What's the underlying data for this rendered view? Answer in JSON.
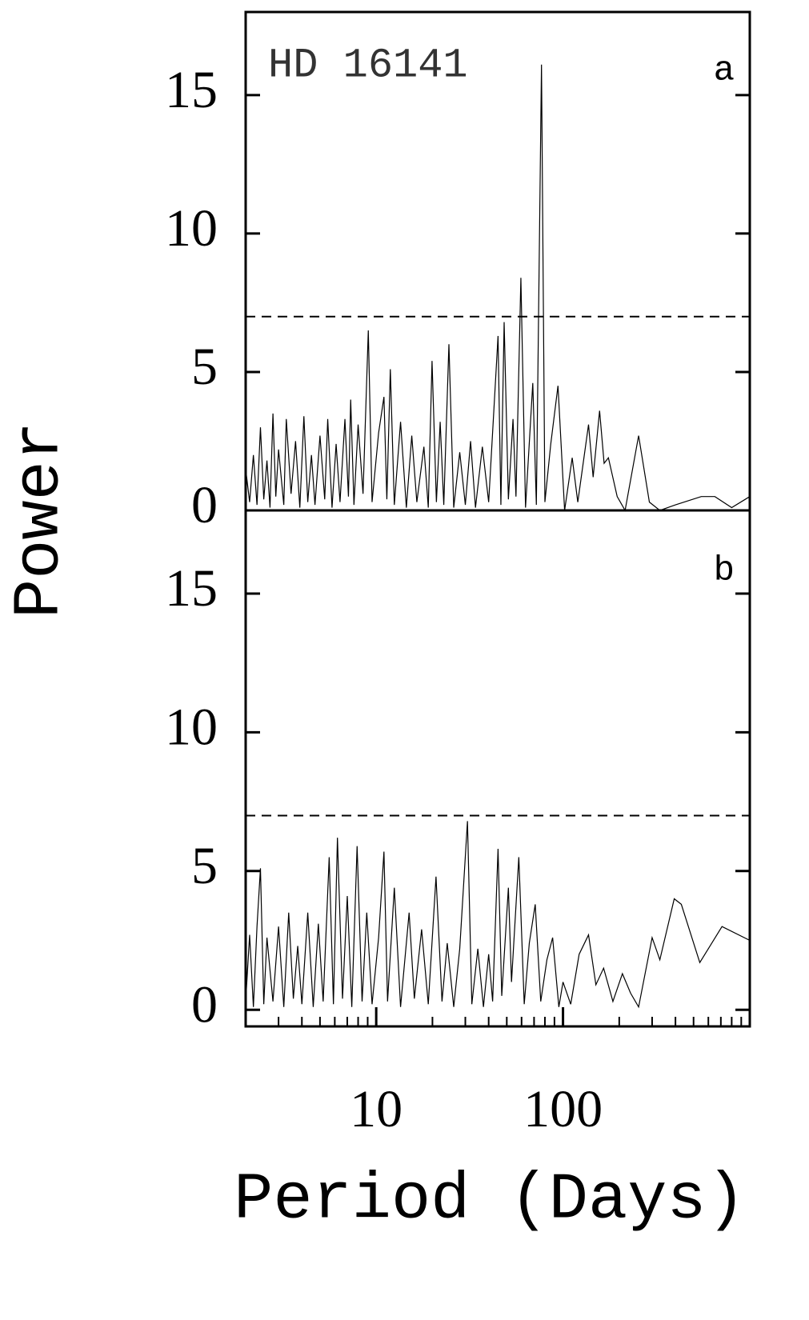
{
  "chart_data": [
    {
      "type": "line",
      "title": "HD 16141",
      "panel": "a",
      "ylabel": "Power",
      "xlim": [
        2,
        1000
      ],
      "xlog": true,
      "ylim": [
        0,
        18
      ],
      "yticks": [
        0,
        5,
        10,
        15
      ],
      "threshold": 7,
      "series": [
        {
          "color": "#000000",
          "x": [
            2.0,
            2.1,
            2.2,
            2.3,
            2.4,
            2.5,
            2.6,
            2.7,
            2.8,
            2.9,
            3.0,
            3.2,
            3.3,
            3.5,
            3.7,
            3.9,
            4.1,
            4.3,
            4.5,
            4.7,
            5.0,
            5.3,
            5.5,
            5.8,
            6.1,
            6.4,
            6.8,
            7.1,
            7.3,
            7.6,
            8.0,
            8.5,
            9.07,
            9.5,
            10.3,
            11.0,
            11.4,
            11.9,
            12.5,
            13.5,
            14.5,
            15.5,
            16.5,
            18.0,
            19.0,
            19.9,
            21.0,
            22.0,
            23.0,
            24.5,
            26.0,
            28.0,
            30.0,
            32.0,
            34.0,
            37.0,
            40.0,
            44.9,
            46.5,
            48.4,
            51.0,
            54.0,
            56.0,
            59.5,
            63.0,
            68.9,
            72.0,
            76.7,
            80.0,
            86.0,
            94.0,
            102.0,
            112.0,
            120.0,
            137.0,
            145.0,
            157.0,
            166.0,
            175.0,
            195.0,
            215.0,
            254.0,
            290.0,
            330.0,
            400.0,
            550.0,
            650.0,
            800.0,
            1000.0
          ],
          "values": [
            1.5,
            0.3,
            2.0,
            0.2,
            3.0,
            0.4,
            1.8,
            0.1,
            3.5,
            0.5,
            2.2,
            0.2,
            3.3,
            0.6,
            2.5,
            0.1,
            3.4,
            0.3,
            2.0,
            0.2,
            2.7,
            0.4,
            3.3,
            0.1,
            2.4,
            0.3,
            3.3,
            0.5,
            4.0,
            0.2,
            3.1,
            0.6,
            6.5,
            0.3,
            2.8,
            4.1,
            0.4,
            5.1,
            0.2,
            3.2,
            0.1,
            2.7,
            0.3,
            2.3,
            0.1,
            5.4,
            0.3,
            3.2,
            0.2,
            6.0,
            0.1,
            2.1,
            0.2,
            2.5,
            0.1,
            2.3,
            0.3,
            6.3,
            0.2,
            6.8,
            0.4,
            3.3,
            0.5,
            8.4,
            0.1,
            4.6,
            0.2,
            16.1,
            0.3,
            2.4,
            4.5,
            0,
            1.9,
            0.3,
            3.1,
            1.2,
            3.6,
            1.7,
            1.9,
            0.5,
            0,
            2.7,
            0.3,
            0,
            0.2,
            0.5,
            0.5,
            0.1,
            0.5
          ]
        }
      ]
    },
    {
      "type": "line",
      "panel": "b",
      "xlabel": "Period (Days)",
      "xlim": [
        2,
        1000
      ],
      "xlog": true,
      "xticks": [
        10,
        100
      ],
      "xminorticks": [
        2,
        3,
        4,
        5,
        6,
        7,
        8,
        9,
        20,
        30,
        40,
        50,
        60,
        70,
        80,
        90,
        200,
        300,
        400,
        500,
        600,
        700,
        800,
        900,
        1000
      ],
      "ylim": [
        -0.6,
        18
      ],
      "yticks": [
        0,
        5,
        10,
        15
      ],
      "threshold": 7,
      "series": [
        {
          "color": "#000000",
          "x": [
            2.0,
            2.1,
            2.2,
            2.3,
            2.4,
            2.5,
            2.6,
            2.8,
            3.0,
            3.2,
            3.4,
            3.6,
            3.8,
            4.0,
            4.3,
            4.6,
            4.9,
            5.2,
            5.6,
            5.9,
            6.2,
            6.6,
            7.0,
            7.4,
            7.9,
            8.4,
            8.9,
            9.5,
            10.3,
            11.0,
            11.5,
            12.5,
            13.5,
            15.0,
            16.0,
            17.5,
            19.0,
            20.9,
            22.5,
            24.0,
            26.0,
            28.0,
            30.8,
            32.5,
            35.0,
            37.5,
            40.0,
            42.0,
            44.9,
            47.0,
            51.0,
            53.0,
            58.0,
            62.0,
            66.0,
            71.0,
            76.0,
            82.0,
            88.0,
            95.0,
            100.0,
            110.0,
            122.0,
            137.0,
            150.0,
            165.0,
            185.0,
            208.0,
            230.0,
            254.0,
            300.0,
            330.0,
            394.0,
            430.0,
            540.0,
            710.0,
            1000.0
          ],
          "values": [
            0.3,
            2.7,
            0.1,
            3.0,
            5.1,
            0.2,
            2.6,
            0.3,
            3.0,
            0.1,
            3.5,
            0.4,
            2.3,
            0.2,
            3.5,
            0.1,
            3.1,
            0.3,
            5.5,
            0.2,
            6.2,
            0.4,
            4.1,
            0.1,
            5.9,
            0.3,
            3.5,
            0.2,
            2.6,
            5.7,
            0.3,
            4.4,
            0.1,
            3.5,
            0.4,
            2.9,
            0.2,
            4.8,
            0.3,
            2.4,
            0.1,
            2.2,
            6.8,
            0.2,
            2.2,
            0.1,
            2.0,
            0.3,
            5.8,
            0.5,
            4.4,
            1.0,
            5.5,
            0.2,
            2.4,
            3.8,
            0.3,
            1.8,
            2.6,
            0.1,
            1.0,
            0.2,
            2.0,
            2.7,
            0.9,
            1.5,
            0.3,
            1.3,
            0.6,
            0.1,
            2.6,
            1.8,
            4.0,
            3.8,
            1.7,
            3.0,
            2.5
          ]
        }
      ]
    }
  ]
}
